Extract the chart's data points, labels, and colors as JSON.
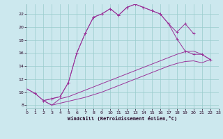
{
  "xlabel": "Windchill (Refroidissement éolien,°C)",
  "bg_color": "#cce8ee",
  "grid_color": "#99cccc",
  "line_color": "#993399",
  "xmin": 0,
  "xmax": 23,
  "ymin": 7.5,
  "ymax": 23.5,
  "yticks": [
    8,
    10,
    12,
    14,
    16,
    18,
    20,
    22
  ],
  "xticks": [
    0,
    1,
    2,
    3,
    4,
    5,
    6,
    7,
    8,
    9,
    10,
    11,
    12,
    13,
    14,
    15,
    16,
    17,
    18,
    19,
    20,
    21,
    22,
    23
  ],
  "series1_x": [
    0,
    1,
    2,
    3,
    4,
    5,
    6,
    7,
    8,
    9,
    10,
    11,
    12,
    13,
    14,
    15,
    16,
    17,
    18,
    19,
    20
  ],
  "series1_y": [
    10.5,
    9.8,
    8.7,
    9.0,
    9.3,
    11.5,
    16.0,
    19.0,
    21.5,
    22.0,
    22.8,
    21.8,
    23.0,
    23.5,
    23.0,
    22.5,
    22.0,
    20.5,
    19.2,
    20.5,
    19.0
  ],
  "series2_x": [
    0,
    1,
    2,
    3,
    4,
    5,
    6,
    7,
    8,
    9,
    10,
    11,
    12,
    13,
    14,
    15,
    16,
    17,
    18,
    19,
    20,
    21,
    22
  ],
  "series2_y": [
    10.5,
    9.8,
    8.7,
    9.0,
    9.3,
    11.5,
    16.0,
    19.0,
    21.5,
    22.0,
    22.8,
    21.8,
    23.0,
    23.5,
    23.0,
    22.5,
    22.0,
    20.5,
    18.2,
    16.3,
    15.8,
    15.8,
    15.0
  ],
  "series3_x": [
    2,
    3,
    4,
    5,
    6,
    7,
    8,
    9,
    10,
    11,
    12,
    13,
    14,
    15,
    16,
    17,
    18,
    19,
    20,
    21,
    22
  ],
  "series3_y": [
    8.7,
    8.0,
    9.0,
    9.3,
    9.8,
    10.3,
    10.8,
    11.3,
    11.8,
    12.3,
    12.8,
    13.3,
    13.8,
    14.3,
    14.8,
    15.3,
    15.8,
    16.2,
    16.3,
    15.8,
    15.0
  ],
  "series4_x": [
    2,
    3,
    4,
    5,
    6,
    7,
    8,
    9,
    10,
    11,
    12,
    13,
    14,
    15,
    16,
    17,
    18,
    19,
    20,
    21,
    22
  ],
  "series4_y": [
    8.7,
    8.0,
    8.3,
    8.6,
    8.9,
    9.2,
    9.6,
    10.0,
    10.5,
    11.0,
    11.5,
    12.0,
    12.5,
    13.0,
    13.5,
    14.0,
    14.4,
    14.7,
    14.8,
    14.5,
    15.0
  ]
}
